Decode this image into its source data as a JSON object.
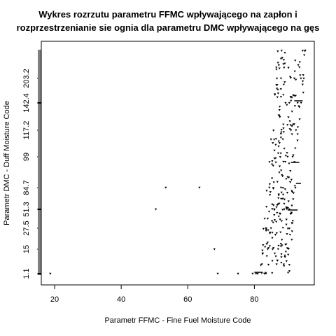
{
  "chart_data": {
    "type": "scatter",
    "title_lines": [
      "Wykres rozrzutu parametru FFMC wpływającego na zapłon i",
      "rozprzestrzenianie sie ognia  dla parametru DMC wpływającego na gęs"
    ],
    "xlabel": "Parametr FFMC - Fine Fuel Moisture Code",
    "ylabel": "Parametr DMC - Duff Moisture Code",
    "xlim": [
      16,
      98
    ],
    "x_ticks": [
      20,
      40,
      60,
      80
    ],
    "y_scale": "categorical (sorted distinct DMC values)",
    "y_ticks": [
      "1.1",
      "15",
      "27.5",
      "51.3",
      "84.7",
      "99",
      "117.2",
      "142.4",
      "203.2"
    ],
    "points": [
      {
        "x": 18.7,
        "y": "1.1"
      },
      {
        "x": 69.0,
        "y": "1.1"
      },
      {
        "x": 68.0,
        "y": "15"
      },
      {
        "x": 50.4,
        "y": "51.3"
      },
      {
        "x": 53.4,
        "y": "84.7"
      },
      {
        "x": 63.5,
        "y": "84.7"
      },
      {
        "x": 79.5,
        "y": "1.1"
      },
      {
        "x": 80.5,
        "y": "1.1"
      },
      {
        "x": 81.0,
        "y": "1.1"
      },
      {
        "x": 83.0,
        "y": "1.1"
      },
      {
        "x": 75.1,
        "y": "1.1"
      },
      {
        "x": 84.0,
        "y": "15"
      },
      {
        "x": 85.5,
        "y": "15"
      },
      {
        "x": 83.5,
        "y": "27.5"
      },
      {
        "x": 85.0,
        "y": "27.5"
      },
      {
        "x": 86.0,
        "y": "51.3"
      },
      {
        "x": 89.0,
        "y": "51.3"
      },
      {
        "x": 90.5,
        "y": "51.3"
      },
      {
        "x": 84.5,
        "y": "84.7"
      },
      {
        "x": 88.0,
        "y": "84.7"
      },
      {
        "x": 90.0,
        "y": "99"
      },
      {
        "x": 91.5,
        "y": "99"
      },
      {
        "x": 91.0,
        "y": "117.2"
      },
      {
        "x": 92.5,
        "y": "117.2"
      },
      {
        "x": 90.5,
        "y": "142.4"
      },
      {
        "x": 93.0,
        "y": "142.4"
      },
      {
        "x": 92.0,
        "y": "203.2"
      },
      {
        "x": 94.0,
        "y": "203.2"
      },
      {
        "x": 88.0,
        "y": "203.2"
      }
    ]
  }
}
